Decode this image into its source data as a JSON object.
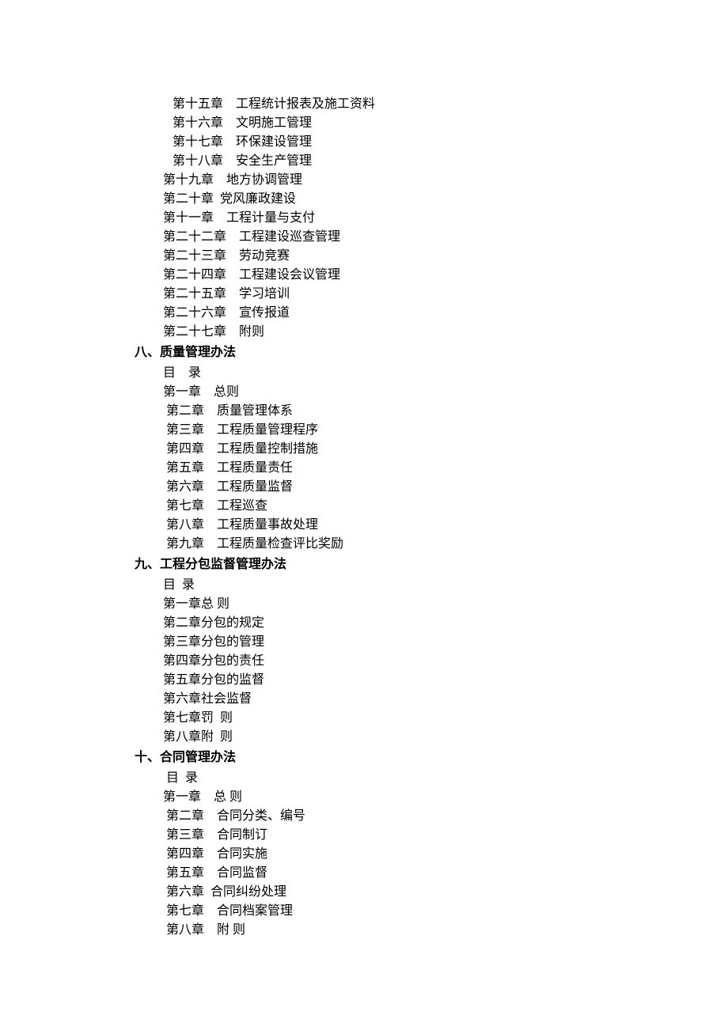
{
  "lines": [
    {
      "class": "toc-line indent-2",
      "text": "  第十五章    工程统计报表及施工资料"
    },
    {
      "class": "toc-line indent-2",
      "text": "  第十六章    文明施工管理"
    },
    {
      "class": "toc-line indent-2",
      "text": "  第十七章    环保建设管理"
    },
    {
      "class": "toc-line indent-2",
      "text": "  第十八章    安全生产管理"
    },
    {
      "class": "toc-line indent-1",
      "text": " 第十九章    地方协调管理"
    },
    {
      "class": "toc-line indent-1",
      "text": " 第二十章  党风廉政建设"
    },
    {
      "class": "toc-line indent-1",
      "text": " 第十一章    工程计量与支付"
    },
    {
      "class": "toc-line indent-1",
      "text": " 第二十二章    工程建设巡查管理"
    },
    {
      "class": "toc-line indent-1",
      "text": " 第二十三章    劳动竞赛"
    },
    {
      "class": "toc-line indent-1",
      "text": " 第二十四章    工程建设会议管理"
    },
    {
      "class": "toc-line indent-1",
      "text": " 第二十五章    学习培训"
    },
    {
      "class": "toc-line indent-1",
      "text": " 第二十六章    宣传报道"
    },
    {
      "class": "toc-line indent-1",
      "text": " 第二十七章    附则"
    },
    {
      "class": "section-title indent-0",
      "text": "八、质量管理办法"
    },
    {
      "class": "toc-line indent-1",
      "text": " 目    录"
    },
    {
      "class": "toc-line indent-1",
      "text": " 第一章    总则"
    },
    {
      "class": "toc-line indent-2",
      "text": "第二章    质量管理体系"
    },
    {
      "class": "toc-line indent-2",
      "text": "第三章    工程质量管理程序"
    },
    {
      "class": "toc-line indent-2",
      "text": "第四章    工程质量控制措施"
    },
    {
      "class": "toc-line indent-2",
      "text": "第五章    工程质量责任"
    },
    {
      "class": "toc-line indent-2",
      "text": "第六章    工程质量监督"
    },
    {
      "class": "toc-line indent-2",
      "text": "第七章    工程巡查"
    },
    {
      "class": "toc-line indent-2",
      "text": "第八章    工程质量事故处理"
    },
    {
      "class": "toc-line indent-2",
      "text": "第九章    工程质量检查评比奖励"
    },
    {
      "class": "section-title indent-0",
      "text": "九、工程分包监督管理办法"
    },
    {
      "class": "toc-line indent-1",
      "text": " 目  录"
    },
    {
      "class": "toc-line indent-1",
      "text": " 第一章总 则"
    },
    {
      "class": "toc-line indent-1",
      "text": " 第二章分包的规定"
    },
    {
      "class": "toc-line indent-1",
      "text": " 第三章分包的管理"
    },
    {
      "class": "toc-line indent-1",
      "text": " 第四章分包的责任"
    },
    {
      "class": "toc-line indent-1",
      "text": " 第五章分包的监督"
    },
    {
      "class": "toc-line indent-1",
      "text": " 第六章社会监督"
    },
    {
      "class": "toc-line indent-1",
      "text": " 第七章罚  则"
    },
    {
      "class": "toc-line indent-1",
      "text": " 第八章附  则"
    },
    {
      "class": "section-title indent-0",
      "text": "十、合同管理办法"
    },
    {
      "class": "toc-line indent-1",
      "text": "  目  录"
    },
    {
      "class": "toc-line indent-1",
      "text": " 第一章    总 则"
    },
    {
      "class": "toc-line indent-2",
      "text": "第二章    合同分类、编号"
    },
    {
      "class": "toc-line indent-2",
      "text": "第三章    合同制订"
    },
    {
      "class": "toc-line indent-2",
      "text": "第四章    合同实施"
    },
    {
      "class": "toc-line indent-2",
      "text": "第五章    合同监督"
    },
    {
      "class": "toc-line indent-2",
      "text": "第六章  合同纠纷处理"
    },
    {
      "class": "toc-line indent-2",
      "text": "第七章    合同档案管理"
    },
    {
      "class": "toc-line indent-2",
      "text": "第八章    附 则"
    }
  ]
}
